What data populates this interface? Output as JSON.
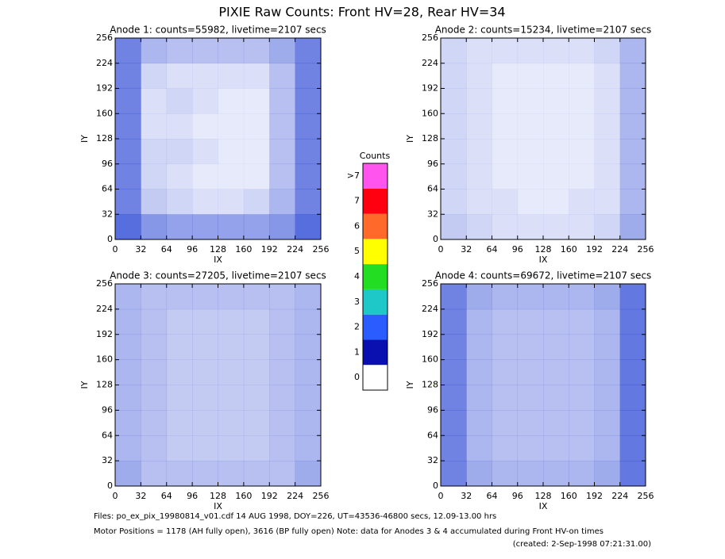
{
  "title": "PIXIE Raw Counts:  Front HV=28, Rear HV=34",
  "chart_data": [
    {
      "type": "heatmap",
      "title": "Anode 1: counts=55982, livetime=2107 secs",
      "xlabel": "IX",
      "ylabel": "IY",
      "color": "#1030d0",
      "xlim": [
        0,
        256
      ],
      "ylim": [
        0,
        256
      ],
      "xticks": [
        0,
        32,
        64,
        96,
        128,
        160,
        192,
        224,
        256
      ],
      "yticks": [
        0,
        32,
        64,
        96,
        128,
        160,
        192,
        224,
        256
      ],
      "density": [
        [
          0.6,
          0.35,
          0.3,
          0.3,
          0.3,
          0.3,
          0.4,
          0.6
        ],
        [
          0.6,
          0.2,
          0.15,
          0.15,
          0.15,
          0.15,
          0.3,
          0.6
        ],
        [
          0.6,
          0.15,
          0.2,
          0.15,
          0.1,
          0.1,
          0.3,
          0.6
        ],
        [
          0.6,
          0.15,
          0.15,
          0.1,
          0.1,
          0.1,
          0.3,
          0.6
        ],
        [
          0.6,
          0.2,
          0.2,
          0.15,
          0.1,
          0.1,
          0.3,
          0.6
        ],
        [
          0.6,
          0.2,
          0.15,
          0.1,
          0.1,
          0.1,
          0.3,
          0.6
        ],
        [
          0.6,
          0.25,
          0.2,
          0.15,
          0.15,
          0.2,
          0.35,
          0.6
        ],
        [
          0.7,
          0.5,
          0.45,
          0.45,
          0.45,
          0.45,
          0.5,
          0.7
        ]
      ]
    },
    {
      "type": "heatmap",
      "title": "Anode 2: counts=15234, livetime=2107 secs",
      "xlabel": "IX",
      "ylabel": "IY",
      "color": "#1030d0",
      "xlim": [
        0,
        256
      ],
      "ylim": [
        0,
        256
      ],
      "xticks": [
        0,
        32,
        64,
        96,
        128,
        160,
        192,
        224,
        256
      ],
      "yticks": [
        0,
        32,
        64,
        96,
        128,
        160,
        192,
        224,
        256
      ],
      "density": [
        [
          0.2,
          0.15,
          0.15,
          0.15,
          0.15,
          0.15,
          0.2,
          0.35
        ],
        [
          0.2,
          0.15,
          0.1,
          0.1,
          0.1,
          0.1,
          0.15,
          0.35
        ],
        [
          0.2,
          0.15,
          0.1,
          0.1,
          0.1,
          0.1,
          0.15,
          0.35
        ],
        [
          0.2,
          0.15,
          0.1,
          0.1,
          0.1,
          0.1,
          0.15,
          0.35
        ],
        [
          0.2,
          0.15,
          0.1,
          0.1,
          0.1,
          0.1,
          0.15,
          0.35
        ],
        [
          0.2,
          0.15,
          0.1,
          0.1,
          0.1,
          0.1,
          0.15,
          0.35
        ],
        [
          0.2,
          0.15,
          0.15,
          0.1,
          0.1,
          0.15,
          0.15,
          0.35
        ],
        [
          0.25,
          0.2,
          0.15,
          0.15,
          0.15,
          0.15,
          0.2,
          0.4
        ]
      ]
    },
    {
      "type": "heatmap",
      "title": "Anode 3: counts=27205, livetime=2107 secs",
      "xlabel": "IX",
      "ylabel": "IY",
      "color": "#1030d0",
      "xlim": [
        0,
        256
      ],
      "ylim": [
        0,
        256
      ],
      "xticks": [
        0,
        32,
        64,
        96,
        128,
        160,
        192,
        224,
        256
      ],
      "yticks": [
        0,
        32,
        64,
        96,
        128,
        160,
        192,
        224,
        256
      ],
      "density": [
        [
          0.35,
          0.3,
          0.3,
          0.3,
          0.3,
          0.3,
          0.3,
          0.35
        ],
        [
          0.35,
          0.3,
          0.25,
          0.25,
          0.25,
          0.25,
          0.3,
          0.35
        ],
        [
          0.35,
          0.3,
          0.25,
          0.25,
          0.25,
          0.25,
          0.3,
          0.35
        ],
        [
          0.35,
          0.3,
          0.25,
          0.25,
          0.25,
          0.25,
          0.3,
          0.35
        ],
        [
          0.35,
          0.3,
          0.25,
          0.25,
          0.25,
          0.25,
          0.3,
          0.35
        ],
        [
          0.35,
          0.3,
          0.25,
          0.25,
          0.25,
          0.25,
          0.3,
          0.35
        ],
        [
          0.35,
          0.3,
          0.25,
          0.25,
          0.25,
          0.25,
          0.3,
          0.35
        ],
        [
          0.4,
          0.3,
          0.3,
          0.3,
          0.3,
          0.3,
          0.3,
          0.4
        ]
      ]
    },
    {
      "type": "heatmap",
      "title": "Anode 4: counts=69672, livetime=2107 secs",
      "xlabel": "IX",
      "ylabel": "IY",
      "color": "#1030d0",
      "xlim": [
        0,
        256
      ],
      "ylim": [
        0,
        256
      ],
      "xticks": [
        0,
        32,
        64,
        96,
        128,
        160,
        192,
        224,
        256
      ],
      "yticks": [
        0,
        32,
        64,
        96,
        128,
        160,
        192,
        224,
        256
      ],
      "density": [
        [
          0.6,
          0.4,
          0.35,
          0.35,
          0.35,
          0.35,
          0.4,
          0.65
        ],
        [
          0.6,
          0.35,
          0.3,
          0.3,
          0.3,
          0.3,
          0.35,
          0.65
        ],
        [
          0.6,
          0.35,
          0.3,
          0.3,
          0.3,
          0.3,
          0.35,
          0.65
        ],
        [
          0.6,
          0.35,
          0.3,
          0.3,
          0.3,
          0.3,
          0.35,
          0.65
        ],
        [
          0.6,
          0.35,
          0.3,
          0.3,
          0.3,
          0.3,
          0.35,
          0.65
        ],
        [
          0.6,
          0.35,
          0.3,
          0.3,
          0.3,
          0.3,
          0.35,
          0.65
        ],
        [
          0.6,
          0.35,
          0.3,
          0.3,
          0.3,
          0.3,
          0.35,
          0.65
        ],
        [
          0.6,
          0.4,
          0.35,
          0.35,
          0.35,
          0.35,
          0.4,
          0.65
        ]
      ]
    }
  ],
  "colorbar": {
    "title": "Counts",
    "levels": [
      {
        "label": "0",
        "color": "#ffffff"
      },
      {
        "label": "1",
        "color": "#0a10b0"
      },
      {
        "label": "2",
        "color": "#2a5cff"
      },
      {
        "label": "3",
        "color": "#1ec8c8"
      },
      {
        "label": "4",
        "color": "#22dd22"
      },
      {
        "label": "5",
        "color": "#ffff00"
      },
      {
        "label": "6",
        "color": "#ff6a2a"
      },
      {
        "label": "7",
        "color": "#ff0010"
      },
      {
        "label": ">7",
        "color": "#ff55ee"
      }
    ]
  },
  "footer": [
    "Files: po_ex_pix_19980814_v01.cdf    14 AUG 1998, DOY=226, UT=43536-46800 secs, 12.09-13.00 hrs",
    "Motor Positions = 1178 (AH fully open), 3616 (BP fully open)    Note: data for Anodes 3 & 4 accumulated during Front HV-on times",
    "(created:  2-Sep-1998 07:21:31.00)"
  ]
}
